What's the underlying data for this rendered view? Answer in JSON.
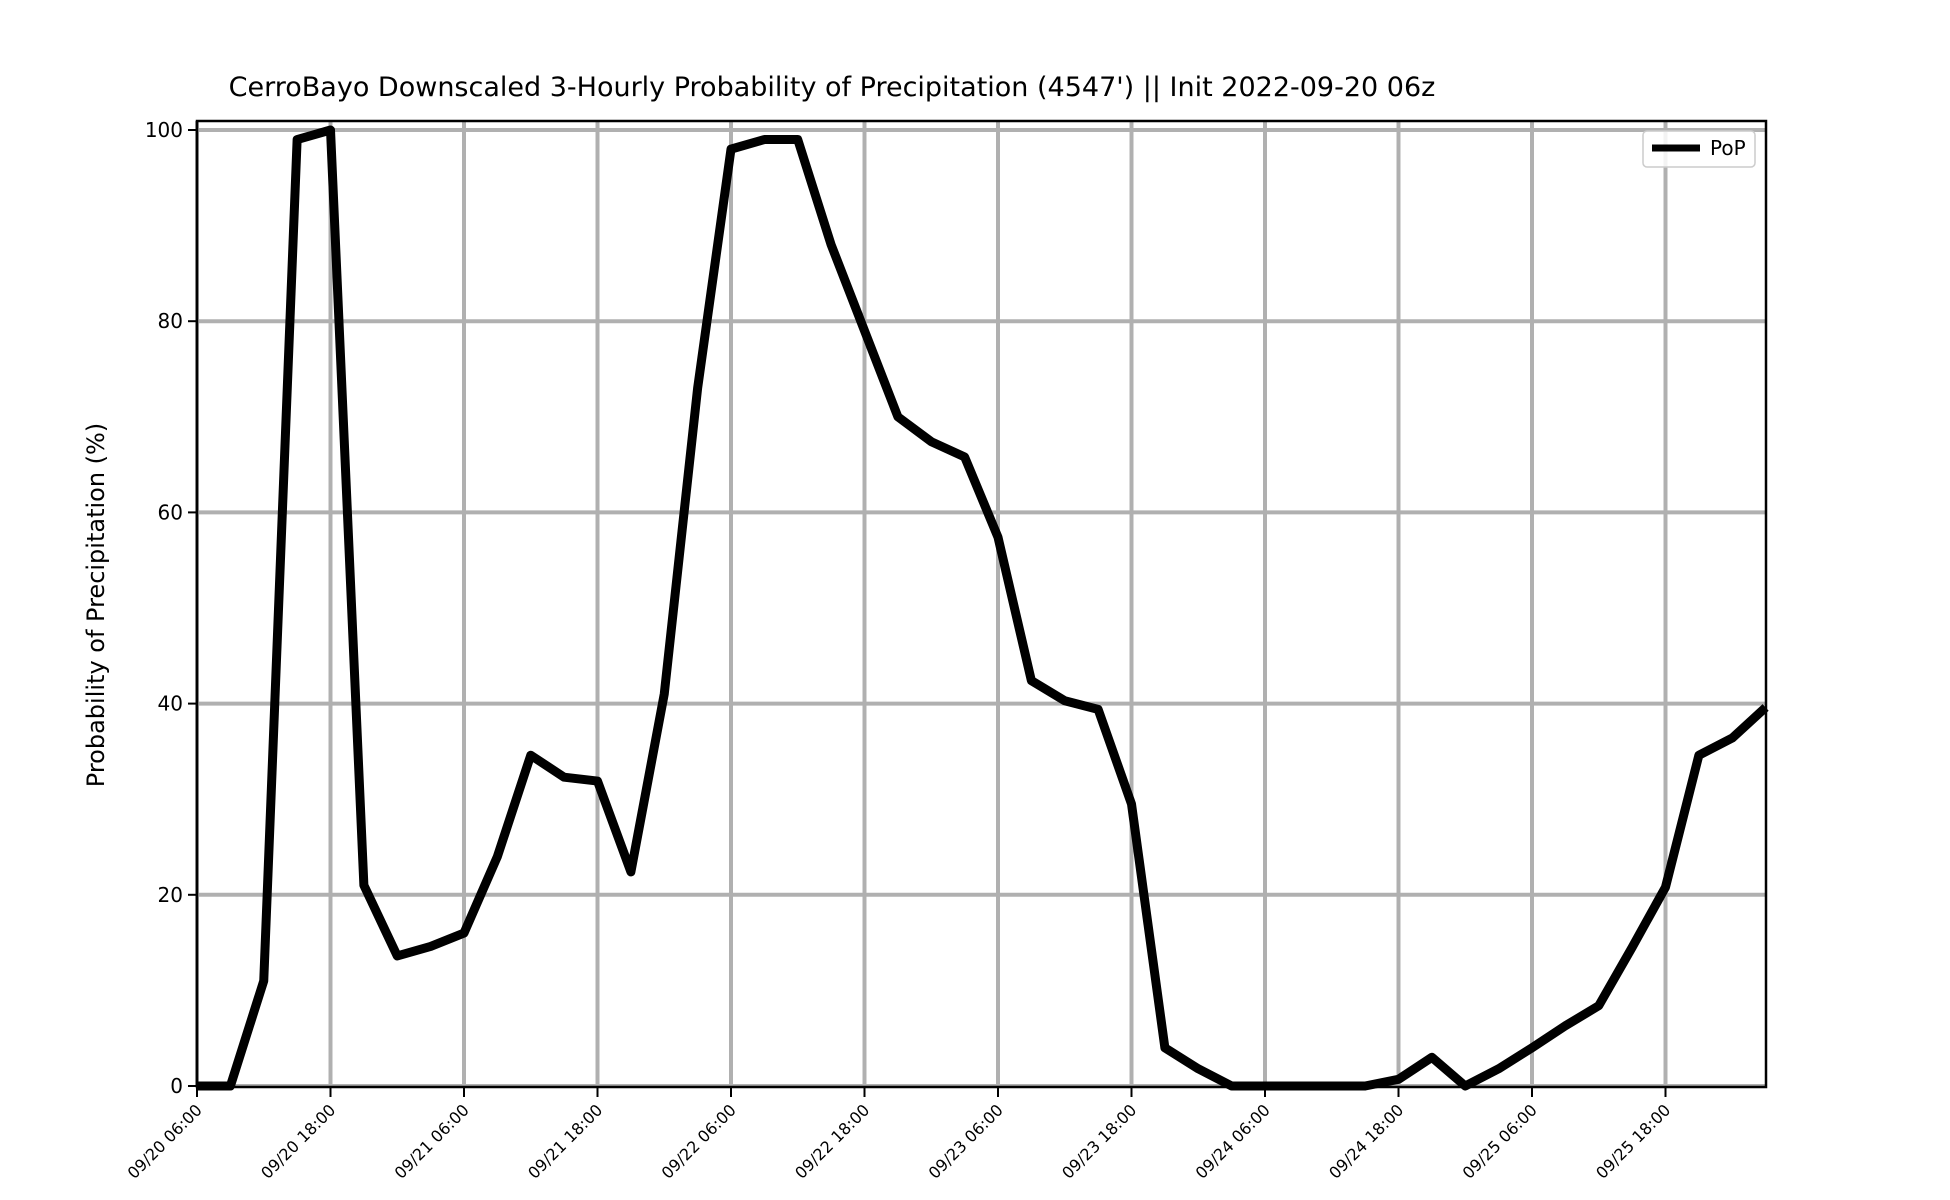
{
  "chart_data": {
    "type": "line",
    "title": "CerroBayo Downscaled 3-Hourly Probability of Precipitation (4547') || Init 2022-09-20 06z",
    "xlabel": "",
    "ylabel": "Probability of Precipitation (%)",
    "ylim": [
      0,
      100
    ],
    "yticks": [
      0,
      20,
      40,
      60,
      80,
      100
    ],
    "x_tick_labels": [
      "09/20 06:00",
      "09/20 18:00",
      "09/21 06:00",
      "09/21 18:00",
      "09/22 06:00",
      "09/22 18:00",
      "09/23 06:00",
      "09/23 18:00",
      "09/24 06:00",
      "09/24 18:00",
      "09/25 06:00",
      "09/25 18:00"
    ],
    "grid": true,
    "legend_position": "top-right",
    "series": [
      {
        "name": "PoP",
        "color": "#000000",
        "x": [
          "09/20 06:00",
          "09/20 09:00",
          "09/20 12:00",
          "09/20 15:00",
          "09/20 18:00",
          "09/20 21:00",
          "09/21 00:00",
          "09/21 03:00",
          "09/21 06:00",
          "09/21 09:00",
          "09/21 12:00",
          "09/21 15:00",
          "09/21 18:00",
          "09/21 21:00",
          "09/22 00:00",
          "09/22 03:00",
          "09/22 06:00",
          "09/22 09:00",
          "09/22 12:00",
          "09/22 15:00",
          "09/22 18:00",
          "09/22 21:00",
          "09/23 00:00",
          "09/23 03:00",
          "09/23 06:00",
          "09/23 09:00",
          "09/23 12:00",
          "09/23 15:00",
          "09/23 18:00",
          "09/23 21:00",
          "09/24 00:00",
          "09/24 03:00",
          "09/24 06:00",
          "09/24 09:00",
          "09/24 12:00",
          "09/24 15:00",
          "09/24 18:00",
          "09/24 21:00",
          "09/25 00:00",
          "09/25 03:00",
          "09/25 06:00",
          "09/25 09:00",
          "09/25 12:00",
          "09/25 15:00",
          "09/25 18:00",
          "09/25 21:00",
          "09/26 00:00",
          "09/26 03:00"
        ],
        "values": [
          0,
          0,
          11,
          99,
          100,
          21,
          13.6,
          14.6,
          16,
          24,
          34.6,
          32.3,
          31.9,
          22.4,
          41,
          73,
          98,
          99,
          99,
          88,
          79,
          70,
          67.4,
          65.8,
          57.4,
          42.4,
          40.3,
          39.4,
          29.5,
          4,
          1.8,
          0,
          0,
          0,
          0,
          0,
          0.7,
          3,
          0,
          1.8,
          4,
          6.3,
          8.4,
          14.5,
          20.8,
          34.6,
          36.4,
          39.6
        ]
      }
    ]
  }
}
